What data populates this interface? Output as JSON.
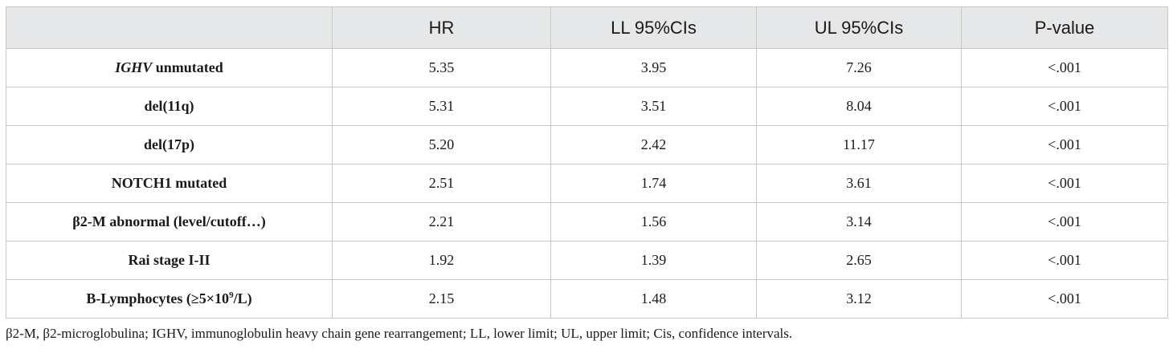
{
  "table": {
    "headers": [
      "",
      "HR",
      "LL 95%CIs",
      "UL 95%CIs",
      "P-value"
    ],
    "rows": [
      {
        "label_italic": "IGHV",
        "label_rest": " unmutated",
        "hr": "5.35",
        "ll": "3.95",
        "ul": "7.26",
        "p": "<.001"
      },
      {
        "label": "del(11q)",
        "hr": "5.31",
        "ll": "3.51",
        "ul": "8.04",
        "p": "<.001"
      },
      {
        "label": "del(17p)",
        "hr": "5.20",
        "ll": "2.42",
        "ul": "11.17",
        "p": "<.001"
      },
      {
        "label": "NOTCH1 mutated",
        "hr": "2.51",
        "ll": "1.74",
        "ul": "3.61",
        "p": "<.001"
      },
      {
        "label": "β2-M abnormal (level/cutoff…)",
        "hr": "2.21",
        "ll": "1.56",
        "ul": "3.14",
        "p": "<.001"
      },
      {
        "label": "Rai stage I-II",
        "hr": "1.92",
        "ll": "1.39",
        "ul": "2.65",
        "p": "<.001"
      },
      {
        "label_pre": "B-Lymphocytes (≥5×10",
        "label_sup": "9",
        "label_post": "/L)",
        "hr": "2.15",
        "ll": "1.48",
        "ul": "3.12",
        "p": "<.001"
      }
    ]
  },
  "footnote": "β2-M, β2-microglobulina; IGHV, immunoglobulin heavy chain gene rearrangement; LL, lower limit; UL, upper limit; Cis, confidence intervals.",
  "colors": {
    "header_bg": "#e6e7e8",
    "border": "#c8c8c8",
    "text": "#1a1a1a"
  }
}
